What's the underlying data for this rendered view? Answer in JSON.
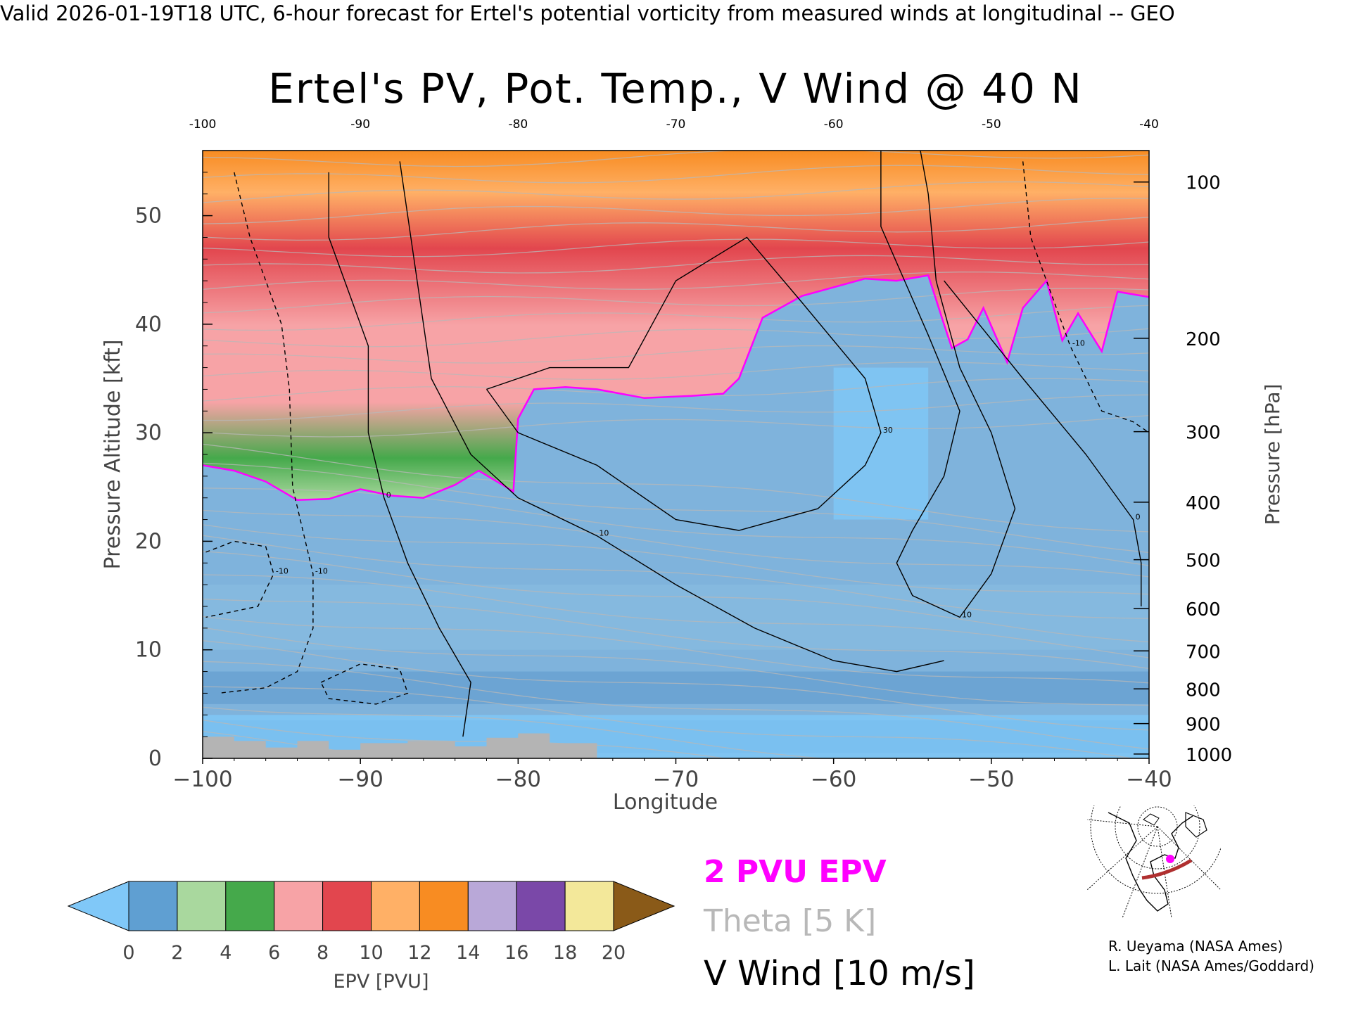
{
  "header": {
    "valid_line": "Valid 2026-01-19T18 UTC, 6-hour forecast for Ertel's potential vorticity from measured winds at longitudinal -- GEO"
  },
  "chart_data": {
    "type": "heatmap",
    "title": "Ertel's PV, Pot. Temp., V Wind @ 40 N",
    "xlabel": "Longitude",
    "ylabel": "Pressure Altitude [kft]",
    "y2label": "Pressure [hPa]",
    "xlim": [
      -100,
      -40
    ],
    "ylim": [
      0,
      56
    ],
    "x_ticks": [
      -100,
      -90,
      -80,
      -70,
      -60,
      -50,
      -40
    ],
    "x_tick_labels": [
      "−100",
      "−90",
      "−80",
      "−70",
      "−60",
      "−50",
      "−40"
    ],
    "top_tick_labels": [
      "-100",
      "-90",
      "-80",
      "-70",
      "-60",
      "-50",
      "-40"
    ],
    "y_ticks": [
      0,
      10,
      20,
      30,
      40,
      50
    ],
    "pressure_levels": [
      {
        "hpa": 100,
        "kft": 53.1
      },
      {
        "hpa": 200,
        "kft": 38.7
      },
      {
        "hpa": 300,
        "kft": 30.1
      },
      {
        "hpa": 400,
        "kft": 23.6
      },
      {
        "hpa": 500,
        "kft": 18.3
      },
      {
        "hpa": 600,
        "kft": 13.8
      },
      {
        "hpa": 700,
        "kft": 9.9
      },
      {
        "hpa": 800,
        "kft": 6.4
      },
      {
        "hpa": 900,
        "kft": 3.2
      },
      {
        "hpa": 1000,
        "kft": 0.4
      }
    ],
    "tropopause_2pvu": [
      [
        -100,
        27.0
      ],
      [
        -98,
        26.5
      ],
      [
        -96,
        25.5
      ],
      [
        -94,
        23.8
      ],
      [
        -92,
        23.9
      ],
      [
        -90,
        24.8
      ],
      [
        -88,
        24.2
      ],
      [
        -86,
        24.0
      ],
      [
        -84,
        25.2
      ],
      [
        -82.5,
        26.5
      ],
      [
        -80.3,
        24.6
      ],
      [
        -80,
        31.3
      ],
      [
        -79,
        34.0
      ],
      [
        -77,
        34.2
      ],
      [
        -75,
        34.0
      ],
      [
        -72,
        33.2
      ],
      [
        -69,
        33.4
      ],
      [
        -67,
        33.6
      ],
      [
        -66,
        35.0
      ],
      [
        -64.5,
        40.6
      ],
      [
        -62,
        42.6
      ],
      [
        -58,
        44.2
      ],
      [
        -56,
        44.0
      ],
      [
        -54,
        44.5
      ],
      [
        -53,
        40.0
      ],
      [
        -52.5,
        37.8
      ],
      [
        -51.5,
        38.6
      ],
      [
        -50.5,
        41.5
      ],
      [
        -49,
        36.5
      ],
      [
        -48,
        41.5
      ],
      [
        -46.5,
        44.0
      ],
      [
        -45.5,
        38.5
      ],
      [
        -44.5,
        41.0
      ],
      [
        -43,
        37.5
      ],
      [
        -42,
        43.0
      ],
      [
        -40,
        42.5
      ]
    ],
    "vwind_contours": [
      {
        "label": "-10",
        "dashed": true,
        "points": [
          [
            -98,
            54
          ],
          [
            -97,
            48
          ],
          [
            -95,
            40
          ],
          [
            -94.5,
            34
          ],
          [
            -94.3,
            25
          ],
          [
            -93,
            17
          ],
          [
            -93,
            12
          ],
          [
            -94,
            8
          ],
          [
            -96,
            6.5
          ],
          [
            -99,
            6
          ]
        ]
      },
      {
        "label": "0",
        "dashed": false,
        "points": [
          [
            -92,
            54
          ],
          [
            -92,
            48
          ],
          [
            -91,
            44
          ],
          [
            -89.5,
            38
          ],
          [
            -89.5,
            30
          ],
          [
            -88.5,
            24
          ],
          [
            -87,
            18
          ],
          [
            -85,
            12
          ],
          [
            -83,
            7
          ],
          [
            -83.5,
            2
          ]
        ]
      },
      {
        "label": "10",
        "dashed": false,
        "points": [
          [
            -87.5,
            55
          ],
          [
            -86.5,
            45
          ],
          [
            -85.5,
            35
          ],
          [
            -83,
            28
          ],
          [
            -80,
            24
          ],
          [
            -75,
            20.5
          ],
          [
            -70,
            16
          ],
          [
            -65,
            12
          ],
          [
            -60,
            9
          ],
          [
            -56,
            8
          ],
          [
            -53,
            9
          ]
        ]
      },
      {
        "label": "30",
        "dashed": false,
        "points": [
          [
            -82,
            34
          ],
          [
            -78,
            36
          ],
          [
            -73,
            36
          ],
          [
            -70,
            44
          ],
          [
            -65.5,
            48
          ],
          [
            -62,
            42
          ],
          [
            -58,
            35
          ],
          [
            -57,
            30
          ],
          [
            -58,
            27
          ],
          [
            -61,
            23
          ],
          [
            -66,
            21
          ],
          [
            -70,
            22
          ],
          [
            -75,
            27
          ],
          [
            -80,
            30
          ],
          [
            -82,
            34
          ]
        ]
      },
      {
        "label": "10",
        "dashed": false,
        "points": [
          [
            -57,
            56
          ],
          [
            -57,
            49
          ],
          [
            -54,
            39
          ],
          [
            -52,
            32
          ],
          [
            -53,
            26
          ],
          [
            -55,
            21
          ],
          [
            -56,
            18
          ],
          [
            -55,
            15
          ],
          [
            -52,
            13
          ],
          [
            -50,
            17
          ],
          [
            -48.5,
            23
          ],
          [
            -50,
            30
          ],
          [
            -52,
            36
          ],
          [
            -53.5,
            44
          ],
          [
            -54,
            52
          ],
          [
            -54.5,
            56
          ]
        ]
      },
      {
        "label": "-10",
        "dashed": true,
        "points": [
          [
            -48,
            55
          ],
          [
            -47.5,
            48
          ],
          [
            -46,
            42
          ],
          [
            -45,
            38
          ],
          [
            -43,
            32
          ],
          [
            -41,
            31
          ],
          [
            -40,
            30
          ]
        ]
      },
      {
        "label": "0",
        "dashed": false,
        "points": [
          [
            -53,
            44
          ],
          [
            -48,
            35
          ],
          [
            -44,
            28
          ],
          [
            -41,
            22
          ],
          [
            -40.5,
            18
          ],
          [
            -40.5,
            14
          ]
        ]
      },
      {
        "label": "-10",
        "dashed": true,
        "points": [
          [
            -99.8,
            19
          ],
          [
            -98,
            20
          ],
          [
            -96,
            19.5
          ],
          [
            -95.5,
            17
          ],
          [
            -96.5,
            14
          ],
          [
            -99.8,
            13
          ]
        ]
      },
      {
        "label": "",
        "dashed": true,
        "points": [
          [
            -92.5,
            7
          ],
          [
            -90,
            8.7
          ],
          [
            -87.5,
            8.2
          ],
          [
            -87,
            6
          ],
          [
            -89,
            5
          ],
          [
            -92,
            5.5
          ],
          [
            -92.5,
            7
          ]
        ]
      }
    ],
    "colorbar": {
      "label": "EPV [PVU]",
      "ticks": [
        0,
        2,
        4,
        6,
        8,
        10,
        12,
        14,
        16,
        18,
        20
      ],
      "low_color": "#80c8f8",
      "high_color": "#8a5a18",
      "colors": [
        "#5f9fd2",
        "#a9d89e",
        "#45a94b",
        "#f7a3a6",
        "#e2464e",
        "#ffb066",
        "#f88c22",
        "#b9a8d8",
        "#7a48a8",
        "#f3e89a"
      ]
    },
    "colors": {
      "pv_2pvu": "#ff00ff",
      "theta": "#b8b8b8",
      "vwind": "#000000",
      "terrain": "#b4b4b4"
    }
  },
  "legend": {
    "pvu": "2 PVU EPV",
    "theta": "Theta [5 K]",
    "vwind": "V Wind [10 m/s]"
  },
  "credits": {
    "line1": "R. Ueyama (NASA Ames)",
    "line2": "L. Lait (NASA Ames/Goddard)"
  },
  "inset_map": {
    "icon": "north-america-polar-map",
    "track_color": "#b03030",
    "marker_color": "#ff00ff"
  }
}
